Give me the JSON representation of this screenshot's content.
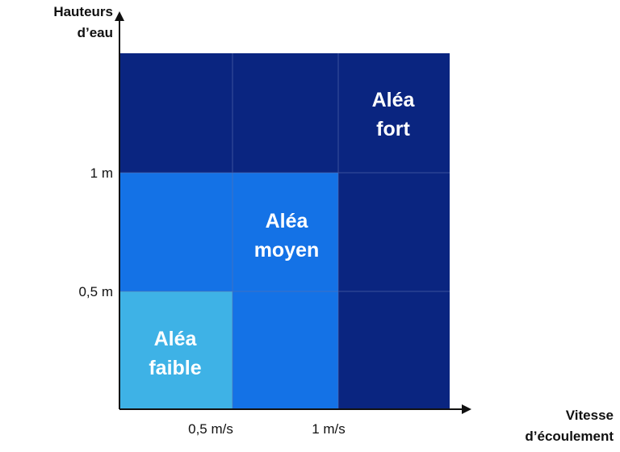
{
  "y_axis_title": "Hauteurs\nd’eau",
  "x_axis_title": "Vitesse\nd’écoulement",
  "y_ticks": [
    "1 m",
    "0,5 m"
  ],
  "x_ticks": [
    "0,5 m/s",
    "1 m/s"
  ],
  "zones": [
    {
      "id": "fort",
      "label": "Aléa\nfort",
      "color": "#0a2580"
    },
    {
      "id": "moyen",
      "label": "Aléa\nmoyen",
      "color": "#1472e6"
    },
    {
      "id": "faible",
      "label": "Aléa\nfaible",
      "color": "#3eb2e6"
    }
  ],
  "colors": {
    "axis": "#111111",
    "grid": "#5a6fae"
  }
}
